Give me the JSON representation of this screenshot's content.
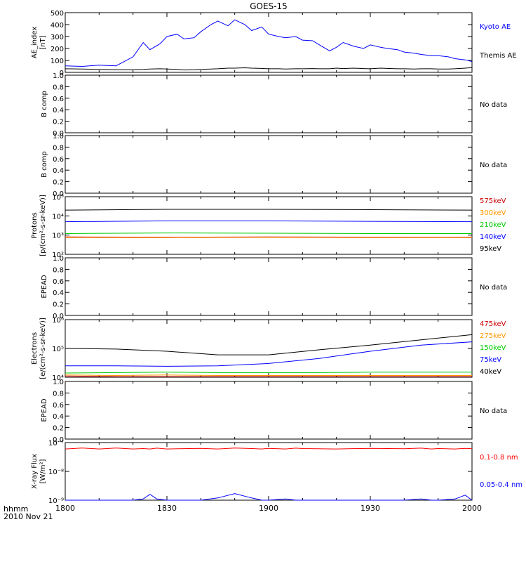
{
  "title": "GOES-15",
  "time_axis": {
    "labels": [
      "1800",
      "1830",
      "1900",
      "1930",
      "2000"
    ],
    "unit_label": "hhmm",
    "date_label": "2010 Nov 21"
  },
  "chart_data": [
    {
      "id": "ae",
      "type": "line",
      "ylabel": [
        "AE_index",
        "[nT]"
      ],
      "scale": "linear",
      "ylim": [
        0,
        500
      ],
      "ticks": [
        "0",
        "100",
        "200",
        "300",
        "400",
        "500"
      ],
      "x": [
        "1800",
        "1805",
        "1810",
        "1815",
        "1820",
        "1823",
        "1825",
        "1828",
        "1830",
        "1833",
        "1835",
        "1838",
        "1840",
        "1843",
        "1845",
        "1848",
        "1850",
        "1853",
        "1855",
        "1858",
        "1900",
        "1903",
        "1905",
        "1908",
        "1910",
        "1913",
        "1915",
        "1918",
        "1920",
        "1922",
        "1925",
        "1928",
        "1930",
        "1933",
        "1935",
        "1938",
        "1940",
        "1943",
        "1945",
        "1948",
        "1950",
        "1953",
        "1955",
        "1958",
        "2000"
      ],
      "series": [
        {
          "name": "Kyoto AE",
          "color": "#0000ff",
          "values": [
            55,
            50,
            60,
            55,
            130,
            250,
            190,
            240,
            300,
            320,
            280,
            290,
            340,
            400,
            430,
            390,
            440,
            400,
            350,
            380,
            320,
            300,
            290,
            300,
            270,
            265,
            230,
            180,
            210,
            250,
            220,
            200,
            230,
            210,
            200,
            190,
            170,
            160,
            150,
            140,
            140,
            130,
            115,
            105,
            90
          ]
        },
        {
          "name": "Themis AE",
          "color": "#000000",
          "values": [
            30,
            28,
            25,
            22,
            22,
            25,
            28,
            30,
            28,
            25,
            20,
            22,
            25,
            28,
            30,
            35,
            35,
            38,
            35,
            33,
            30,
            30,
            28,
            30,
            30,
            32,
            30,
            30,
            35,
            32,
            35,
            32,
            30,
            35,
            33,
            30,
            30,
            28,
            30,
            30,
            28,
            28,
            30,
            35,
            40
          ]
        }
      ]
    },
    {
      "id": "bcomp1",
      "type": "line",
      "ylabel": [
        "B comp"
      ],
      "scale": "linear",
      "ylim": [
        0,
        1
      ],
      "ticks": [
        "0.0",
        "0.2",
        "0.4",
        "0.6",
        "0.8",
        "1.0"
      ],
      "status": "No data",
      "series": []
    },
    {
      "id": "bcomp2",
      "type": "line",
      "ylabel": [
        "B comp"
      ],
      "scale": "linear",
      "ylim": [
        0,
        1
      ],
      "ticks": [
        "0.0",
        "0.2",
        "0.4",
        "0.6",
        "0.8",
        "1.0"
      ],
      "status": "No data",
      "series": []
    },
    {
      "id": "protons",
      "type": "line",
      "ylabel": [
        "Protons",
        "[p/(cm²-s-sr-keV)]"
      ],
      "scale": "log",
      "ylim": [
        100,
        100000
      ],
      "ticks": [
        "10²",
        "10³",
        "10⁴",
        "10⁵"
      ],
      "x": [
        "1800",
        "1830",
        "1900",
        "1930",
        "2000"
      ],
      "series": [
        {
          "name": "575keV",
          "color": "#cc0000",
          "values": [
            800,
            780,
            800,
            790,
            780
          ]
        },
        {
          "name": "300keV",
          "color": "#ff9900",
          "values": [
            750,
            740,
            760,
            750,
            740
          ]
        },
        {
          "name": "210keV",
          "color": "#00cc00",
          "values": [
            1200,
            1300,
            1250,
            1200,
            1200
          ]
        },
        {
          "name": "140keV",
          "color": "#0000ff",
          "values": [
            5000,
            5500,
            5500,
            5200,
            5000
          ]
        },
        {
          "name": "95keV",
          "color": "#000000",
          "values": [
            20000,
            22000,
            22000,
            21000,
            20000
          ]
        }
      ]
    },
    {
      "id": "epead1",
      "type": "line",
      "ylabel": [
        "EPEAD"
      ],
      "scale": "linear",
      "ylim": [
        0,
        1
      ],
      "ticks": [
        "0.0",
        "0.2",
        "0.4",
        "0.6",
        "0.8",
        "1.0"
      ],
      "status": "No data",
      "series": []
    },
    {
      "id": "electrons",
      "type": "line",
      "ylabel": [
        "Electrons",
        "[e/(cm²-s-sr-keV)]"
      ],
      "scale": "log",
      "ylim": [
        10000,
        1000000
      ],
      "ticks": [
        "10⁴",
        "10⁵",
        "10⁶"
      ],
      "x": [
        "1800",
        "1815",
        "1830",
        "1845",
        "1900",
        "1915",
        "1930",
        "1945",
        "2000"
      ],
      "series": [
        {
          "name": "475keV",
          "color": "#cc0000",
          "values": [
            11000,
            10500,
            10500,
            10500,
            10500,
            10500,
            10500,
            10500,
            10500
          ]
        },
        {
          "name": "275keV",
          "color": "#ff9900",
          "values": [
            12000,
            11500,
            12000,
            11500,
            11500,
            11500,
            11500,
            11500,
            11500
          ]
        },
        {
          "name": "150keV",
          "color": "#00cc00",
          "values": [
            14000,
            14500,
            15000,
            14500,
            14500,
            14500,
            15000,
            15000,
            15000
          ]
        },
        {
          "name": "75keV",
          "color": "#0000ff",
          "values": [
            25000,
            25000,
            24000,
            25000,
            30000,
            45000,
            80000,
            130000,
            170000
          ]
        },
        {
          "name": "40keV",
          "color": "#000000",
          "values": [
            100000,
            95000,
            80000,
            60000,
            60000,
            90000,
            130000,
            200000,
            300000
          ]
        }
      ]
    },
    {
      "id": "epead2",
      "type": "line",
      "ylabel": [
        "EPEAD"
      ],
      "scale": "linear",
      "ylim": [
        0,
        1
      ],
      "ticks": [
        "0.0",
        "0.2",
        "0.4",
        "0.6",
        "0.8",
        "1.0"
      ],
      "status": "No data",
      "series": []
    },
    {
      "id": "xray",
      "type": "line",
      "ylabel": [
        "X-ray Flux",
        "[W/m²]"
      ],
      "scale": "log",
      "ylim": [
        1e-09,
        1e-07
      ],
      "ticks": [
        "10⁻⁹",
        "10⁻⁸",
        "10⁻⁷"
      ],
      "x": [
        "1800",
        "1805",
        "1810",
        "1815",
        "1820",
        "1823",
        "1825",
        "1827",
        "1830",
        "1840",
        "1845",
        "1850",
        "1855",
        "1858",
        "1900",
        "1905",
        "1908",
        "1910",
        "1920",
        "1930",
        "1940",
        "1945",
        "1948",
        "1950",
        "1955",
        "1958",
        "2000"
      ],
      "series": [
        {
          "name": "0.1-0.8 nm",
          "color": "#ff0000",
          "values": [
            6e-08,
            6.5e-08,
            6e-08,
            6.5e-08,
            6e-08,
            6.2e-08,
            6e-08,
            6.4e-08,
            6e-08,
            6.3e-08,
            6e-08,
            6.5e-08,
            6.2e-08,
            6e-08,
            6.3e-08,
            6e-08,
            6.4e-08,
            6.2e-08,
            6e-08,
            6.3e-08,
            6.1e-08,
            6.4e-08,
            6e-08,
            6.2e-08,
            6e-08,
            6.3e-08,
            6.1e-08
          ]
        },
        {
          "name": "0.05-0.4 nm",
          "color": "#0000ff",
          "values": [
            1e-09,
            1e-09,
            1e-09,
            1e-09,
            1e-09,
            1.1e-09,
            1.6e-09,
            1.1e-09,
            1e-09,
            1e-09,
            1.2e-09,
            1.7e-09,
            1.2e-09,
            1e-09,
            1e-09,
            1.1e-09,
            1e-09,
            1e-09,
            1e-09,
            1e-09,
            1e-09,
            1.1e-09,
            1e-09,
            1e-09,
            1.1e-09,
            1.5e-09,
            1e-09
          ]
        }
      ]
    }
  ]
}
